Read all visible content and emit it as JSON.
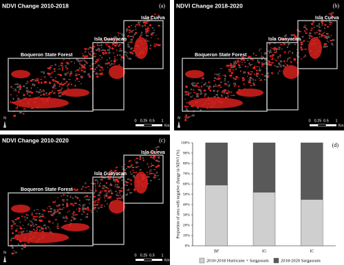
{
  "panels": [
    {
      "title": "NDVI Change 2010-2018",
      "label": "(a)",
      "regions": [
        "Boqueron State Forest",
        "Isla Guayacan",
        "Isla Cueva"
      ],
      "scale": [
        0,
        0.25,
        0.5,
        1
      ],
      "scale_unit": "Km",
      "north": "N"
    },
    {
      "title": "NDVI Change 2018-2020",
      "label": "(b)",
      "regions": [
        "Boqueron State Forest",
        "Isla Guayacan",
        "Isla Cueva"
      ],
      "scale": [
        0,
        0.25,
        0.5,
        1
      ],
      "scale_unit": "Km",
      "north": "N"
    },
    {
      "title": "NDVI Change 2010-2020",
      "label": "(c)",
      "regions": [
        "Boqueron State Forest",
        "Isla Guayacan",
        "Isla Cueva"
      ],
      "scale": [
        0,
        0.25,
        0.5,
        1
      ],
      "scale_unit": "Km",
      "north": "N"
    }
  ],
  "chart_data": {
    "type": "stacked-bar",
    "label": "(d)",
    "y_label": "Proportion of area with negative change in NDVI (%)",
    "categories": [
      "BF",
      "IG",
      "IC"
    ],
    "series": [
      {
        "name": "2010-2018 Hurricane + Sargassum",
        "color": "#cfcfcf",
        "values": [
          59,
          52,
          45
        ]
      },
      {
        "name": "2018-2020 Sargassum",
        "color": "#595959",
        "values": [
          41,
          48,
          55
        ]
      }
    ],
    "ylim": [
      0,
      100
    ],
    "yticks": [
      {
        "value": 0,
        "label": "0%"
      },
      {
        "value": 10,
        "label": "10%"
      },
      {
        "value": 20,
        "label": "20%"
      },
      {
        "value": 30,
        "label": "30%"
      },
      {
        "value": 40,
        "label": "40%"
      },
      {
        "value": 50,
        "label": "50%"
      },
      {
        "value": 60,
        "label": "60%"
      },
      {
        "value": 70,
        "label": "70%"
      },
      {
        "value": 80,
        "label": "80%"
      },
      {
        "value": 90,
        "label": "90%"
      },
      {
        "value": 100,
        "label": "100%"
      }
    ]
  }
}
